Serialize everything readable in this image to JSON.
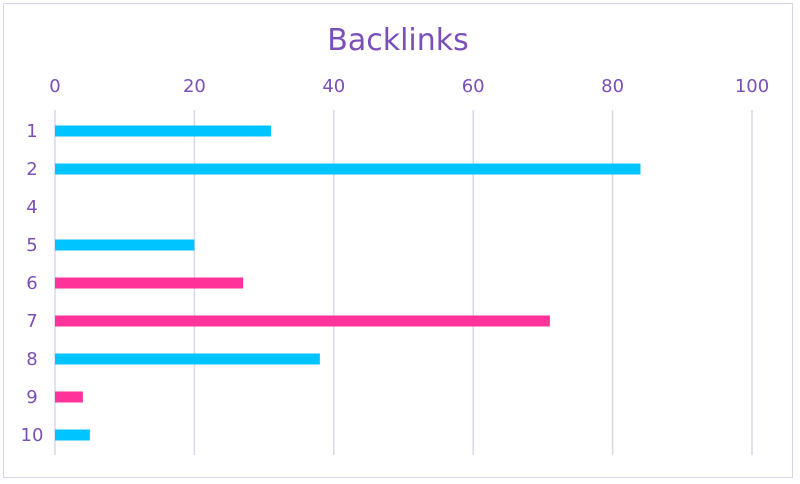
{
  "chart_data": {
    "type": "bar",
    "orientation": "horizontal",
    "title": "Backlinks",
    "xlabel": "",
    "ylabel": "",
    "xlim": [
      0,
      100
    ],
    "x_ticks": [
      0,
      20,
      40,
      60,
      80,
      100
    ],
    "x_axis_position": "top",
    "grid": true,
    "categories": [
      "1",
      "2",
      "4",
      "5",
      "6",
      "7",
      "8",
      "9",
      "10"
    ],
    "values": [
      31,
      84,
      0,
      20,
      27,
      71,
      38,
      4,
      5
    ],
    "bar_colors": [
      "#00c4ff",
      "#00c4ff",
      "#00c4ff",
      "#00c4ff",
      "#ff3399",
      "#ff3399",
      "#00c4ff",
      "#ff3399",
      "#00c4ff"
    ],
    "colors": {
      "title": "#7b4fb8",
      "ticks": "#7b4fb8",
      "grid": "#d8d8ea",
      "frame": "#d9d4ea"
    }
  }
}
